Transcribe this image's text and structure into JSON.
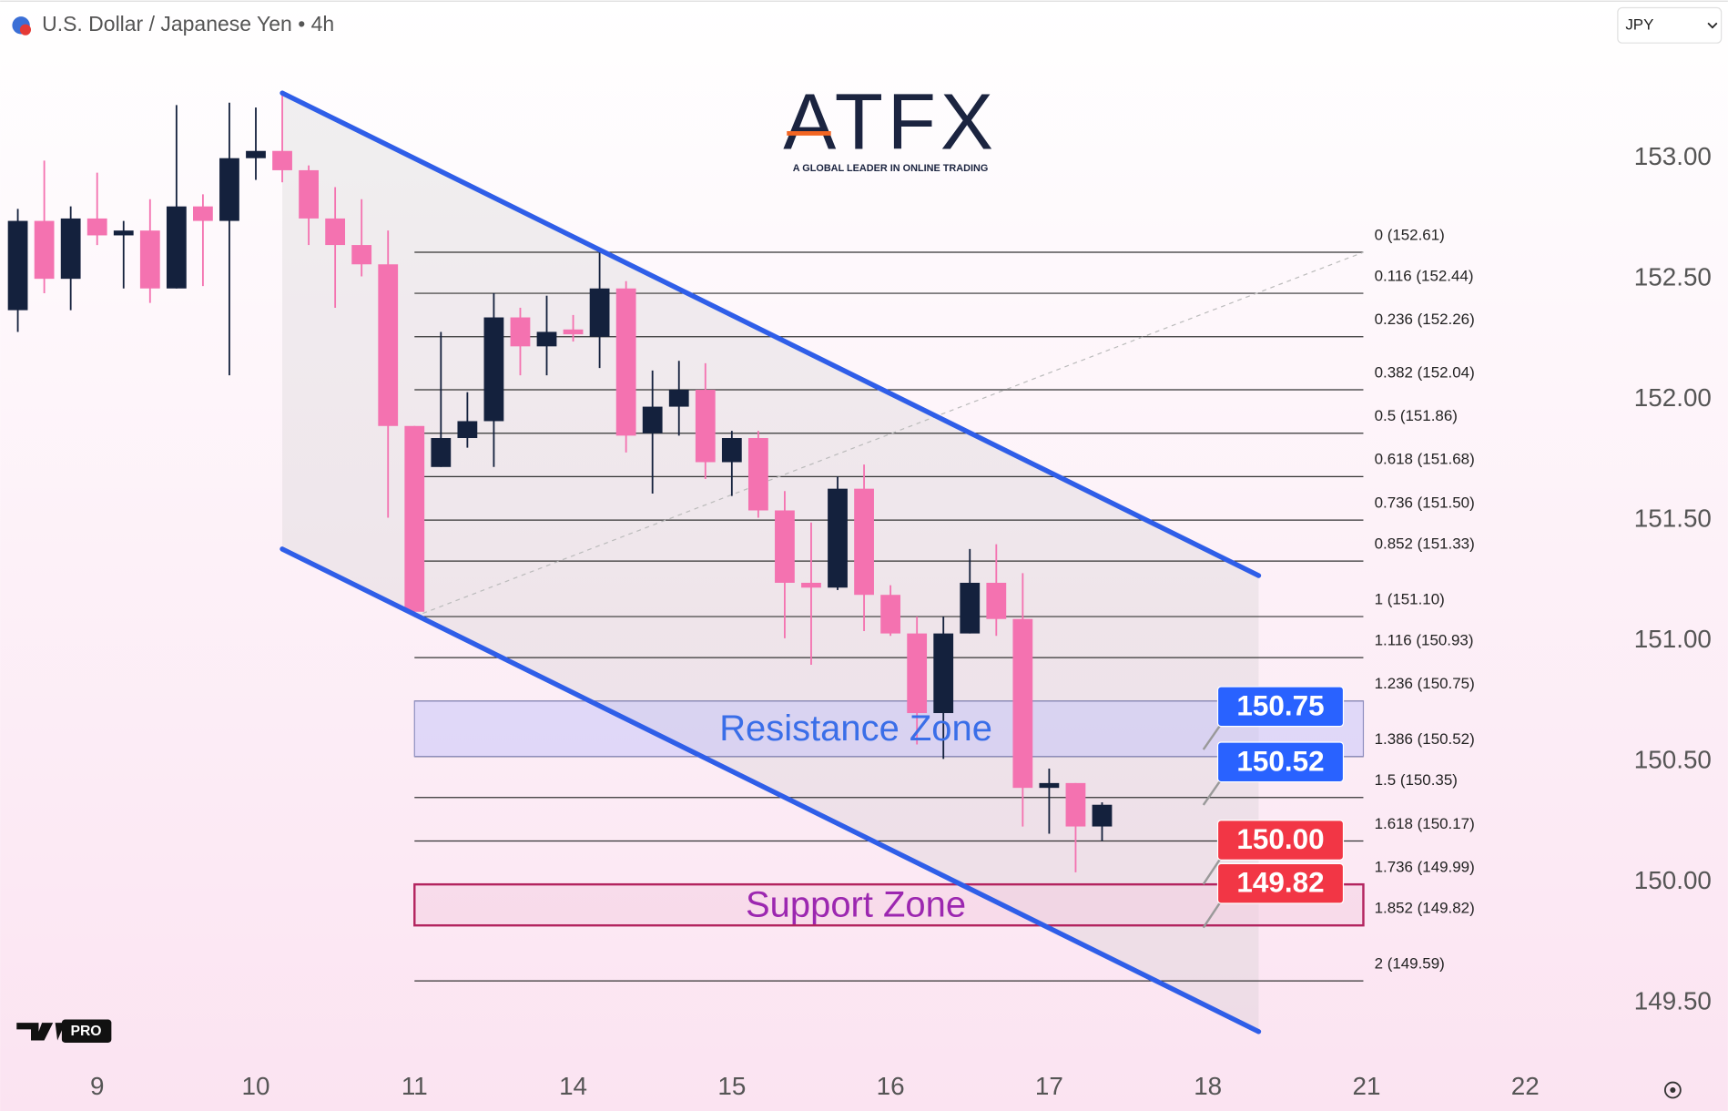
{
  "chart_data": {
    "type": "candlestick",
    "title": "U.S. Dollar / Japanese Yen • 4h",
    "currency": "JPY",
    "logo": "ATFX",
    "logo_tagline": "A GLOBAL LEADER IN ONLINE TRADING",
    "badge": "PRO",
    "up_color": "#14213d",
    "down_color": "#f472b0",
    "x": [
      0,
      1,
      2,
      3,
      4,
      5,
      6,
      7,
      8,
      9,
      10,
      11,
      12,
      13,
      14,
      15,
      16,
      17,
      18,
      19,
      20,
      21,
      22,
      23,
      24,
      25,
      26,
      27,
      28,
      29,
      30,
      31,
      32,
      33,
      34,
      35,
      36,
      37,
      38,
      39,
      40,
      41
    ],
    "open": [
      152.37,
      152.74,
      152.5,
      152.75,
      152.68,
      152.7,
      152.46,
      152.8,
      152.74,
      153.0,
      153.03,
      152.95,
      152.75,
      152.64,
      152.56,
      151.89,
      151.72,
      151.84,
      151.91,
      152.34,
      152.22,
      152.29,
      152.26,
      152.46,
      151.86,
      151.97,
      152.04,
      151.74,
      151.84,
      151.54,
      151.24,
      151.22,
      151.63,
      151.19,
      151.03,
      150.7,
      151.03,
      151.24,
      151.09,
      150.39,
      150.41,
      150.23
    ],
    "high": [
      152.79,
      152.99,
      152.8,
      152.94,
      152.74,
      152.83,
      153.22,
      152.85,
      153.23,
      153.21,
      153.27,
      152.97,
      152.88,
      152.83,
      152.7,
      151.89,
      152.28,
      152.03,
      152.44,
      152.38,
      152.43,
      152.35,
      152.61,
      152.49,
      152.12,
      152.16,
      152.15,
      151.87,
      151.87,
      151.62,
      151.49,
      151.68,
      151.73,
      151.23,
      151.1,
      151.1,
      151.38,
      151.4,
      151.28,
      150.47,
      150.41,
      150.33
    ],
    "low": [
      152.28,
      152.44,
      152.37,
      152.64,
      152.46,
      152.4,
      152.46,
      152.47,
      152.1,
      152.91,
      152.9,
      152.64,
      152.38,
      152.51,
      151.51,
      151.1,
      151.72,
      151.8,
      151.72,
      152.1,
      152.1,
      152.24,
      152.13,
      151.78,
      151.61,
      151.85,
      151.67,
      151.6,
      151.51,
      151.01,
      150.9,
      151.21,
      151.04,
      151.02,
      150.57,
      150.51,
      151.03,
      151.02,
      150.23,
      150.2,
      150.04,
      150.17
    ],
    "close": [
      152.74,
      152.5,
      152.75,
      152.68,
      152.7,
      152.46,
      152.8,
      152.74,
      153.0,
      153.03,
      152.95,
      152.75,
      152.64,
      152.56,
      151.89,
      151.12,
      151.84,
      151.91,
      152.34,
      152.22,
      152.28,
      152.27,
      152.46,
      151.85,
      151.97,
      152.04,
      151.74,
      151.84,
      151.54,
      151.24,
      151.22,
      151.63,
      151.19,
      151.03,
      150.7,
      151.03,
      151.24,
      151.09,
      150.39,
      150.41,
      150.23,
      150.32
    ],
    "xlim": [
      -0.67,
      60.29
    ],
    "ylim": [
      149.27,
      153.45
    ],
    "xticks": [
      {
        "value": 3,
        "label": "9"
      },
      {
        "value": 9,
        "label": "10"
      },
      {
        "value": 15,
        "label": "11"
      },
      {
        "value": 21,
        "label": "14"
      },
      {
        "value": 27,
        "label": "15"
      },
      {
        "value": 33,
        "label": "16"
      },
      {
        "value": 39,
        "label": "17"
      },
      {
        "value": 45,
        "label": "18"
      },
      {
        "value": 51,
        "label": "21"
      },
      {
        "value": 57,
        "label": "22"
      }
    ],
    "yticks": [
      {
        "value": 153,
        "label": "153.00"
      },
      {
        "value": 152.5,
        "label": "152.50"
      },
      {
        "value": 152,
        "label": "152.00"
      },
      {
        "value": 151.5,
        "label": "151.50"
      },
      {
        "value": 151,
        "label": "151.00"
      },
      {
        "value": 150.5,
        "label": "150.50"
      },
      {
        "value": 150,
        "label": "150.00"
      },
      {
        "value": 149.5,
        "label": "149.50"
      }
    ],
    "channel": {
      "upper": {
        "x": [
          10,
          46.92
        ],
        "y": [
          153.27,
          151.27
        ]
      },
      "lower": {
        "x": [
          10,
          46.92
        ],
        "y": [
          151.38,
          149.38
        ]
      }
    },
    "fib_range": [
      15,
      50.88
    ],
    "fib_levels": [
      {
        "value": 152.61,
        "label": "0 (152.61)"
      },
      {
        "value": 152.44,
        "label": "0.116 (152.44)"
      },
      {
        "value": 152.26,
        "label": "0.236 (152.26)"
      },
      {
        "value": 152.04,
        "label": "0.382 (152.04)"
      },
      {
        "value": 151.86,
        "label": "0.5 (151.86)"
      },
      {
        "value": 151.68,
        "label": "0.618 (151.68)"
      },
      {
        "value": 151.5,
        "label": "0.736 (151.50)"
      },
      {
        "value": 151.33,
        "label": "0.852 (151.33)"
      },
      {
        "value": 151.1,
        "label": "1 (151.10)"
      },
      {
        "value": 150.93,
        "label": "1.116 (150.93)"
      },
      {
        "value": 150.75,
        "label": "1.236 (150.75)"
      },
      {
        "value": 150.52,
        "label": "1.386 (150.52)"
      },
      {
        "value": 150.35,
        "label": "1.5 (150.35)"
      },
      {
        "value": 150.17,
        "label": "1.618 (150.17)"
      },
      {
        "value": 149.99,
        "label": "1.736 (149.99)"
      },
      {
        "value": 149.82,
        "label": "1.852 (149.82)"
      },
      {
        "value": 149.59,
        "label": "2 (149.59)"
      }
    ],
    "zones": [
      {
        "label": "Resistance Zone",
        "range": [
          150.52,
          150.75
        ],
        "fill": "rgba(190,190,250,0.45)",
        "stroke": "#8f8fc0",
        "text_color": "#3a6ee8"
      },
      {
        "label": "Support Zone",
        "range": [
          149.82,
          149.99
        ],
        "fill": "rgba(245,205,225,0.45)",
        "stroke": "#b3245f",
        "text_color": "#9c27b0"
      }
    ],
    "price_tags": [
      {
        "value": 150.75,
        "label": "150.75",
        "color": "#2962ff",
        "side": "below"
      },
      {
        "value": 150.52,
        "label": "150.52",
        "color": "#2962ff",
        "side": "below"
      },
      {
        "value": 150.0,
        "label": "150.00",
        "color": "#f23645",
        "side": "above"
      },
      {
        "value": 149.82,
        "label": "149.82",
        "color": "#f23645",
        "side": "above"
      }
    ]
  }
}
